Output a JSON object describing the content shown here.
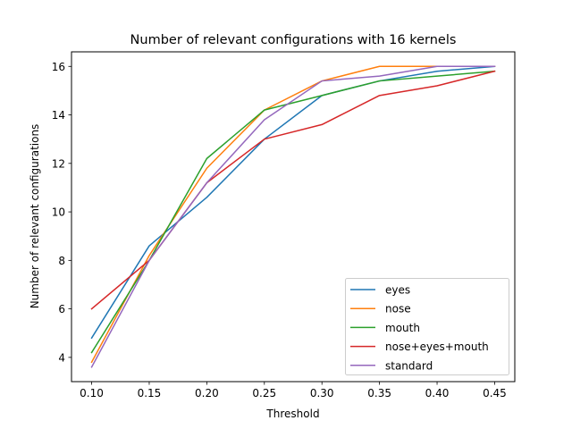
{
  "chart_data": {
    "type": "line",
    "title": "Number of relevant configurations with 16 kernels",
    "xlabel": "Threshold",
    "ylabel": "Number of relevant configurations",
    "x": [
      0.1,
      0.15,
      0.2,
      0.25,
      0.3,
      0.35,
      0.4,
      0.45
    ],
    "x_tick_labels": [
      "0.10",
      "0.15",
      "0.20",
      "0.25",
      "0.30",
      "0.35",
      "0.40",
      "0.45"
    ],
    "y_ticks": [
      4,
      6,
      8,
      10,
      12,
      14,
      16
    ],
    "y_tick_labels": [
      "4",
      "6",
      "8",
      "10",
      "12",
      "14",
      "16"
    ],
    "xlim": [
      0.0825,
      0.4675
    ],
    "ylim": [
      3.0,
      16.6
    ],
    "grid": false,
    "legend_position": "lower-right",
    "series": [
      {
        "name": "eyes",
        "color": "#1f77b4",
        "values": [
          4.8,
          8.6,
          10.6,
          13.0,
          14.8,
          15.4,
          15.8,
          16.0
        ]
      },
      {
        "name": "nose",
        "color": "#ff7f0e",
        "values": [
          3.8,
          8.2,
          11.8,
          14.2,
          15.4,
          16.0,
          16.0,
          16.0
        ]
      },
      {
        "name": "mouth",
        "color": "#2ca02c",
        "values": [
          4.2,
          8.0,
          12.2,
          14.2,
          14.8,
          15.4,
          15.6,
          15.8
        ]
      },
      {
        "name": "nose+eyes+mouth",
        "color": "#d62728",
        "values": [
          6.0,
          8.0,
          11.2,
          13.0,
          13.6,
          14.8,
          15.2,
          15.8
        ]
      },
      {
        "name": "standard",
        "color": "#9467bd",
        "values": [
          3.6,
          8.0,
          11.2,
          13.8,
          15.4,
          15.6,
          16.0,
          16.0
        ]
      }
    ]
  }
}
